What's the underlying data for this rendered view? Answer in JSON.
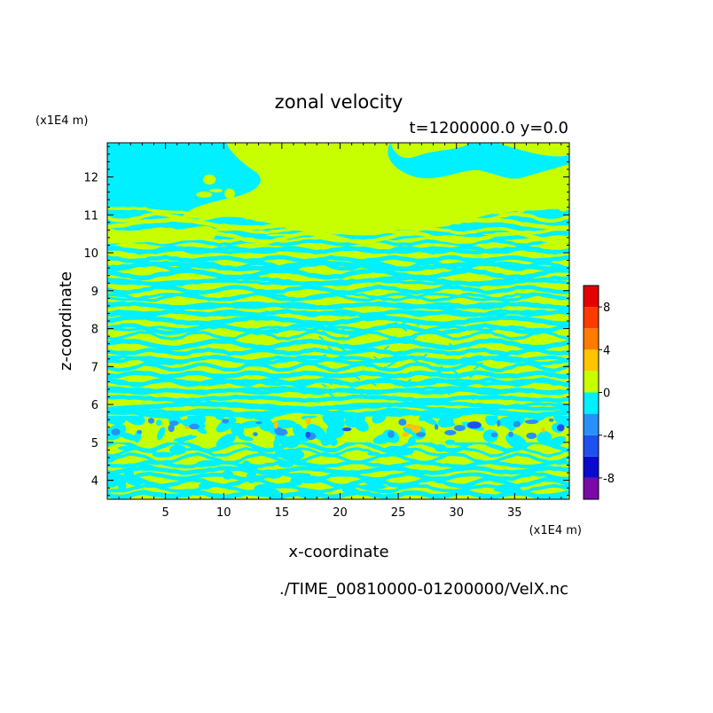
{
  "chart_data": {
    "type": "heatmap",
    "title": "zonal velocity",
    "subtitle": "t=1200000.0 y=0.0",
    "xlabel": "x-coordinate",
    "ylabel": "z-coordinate",
    "x_unit": "(x1E4 m)",
    "y_unit": "(x1E4 m)",
    "footer": "./TIME_00810000-01200000/VelX.nc",
    "xlim": [
      0,
      39.7
    ],
    "ylim": [
      3.5,
      12.9
    ],
    "x_ticks": [
      5,
      10,
      15,
      20,
      25,
      30,
      35
    ],
    "y_ticks": [
      4,
      5,
      6,
      7,
      8,
      9,
      10,
      11,
      12
    ],
    "colorbar": {
      "levels": [
        -10,
        -8,
        -6,
        -4,
        -2,
        0,
        2,
        4,
        6,
        8,
        10
      ],
      "tick_labels": [
        "8",
        "4",
        "0",
        "-4",
        "-8"
      ],
      "tick_values": [
        8,
        4,
        0,
        -4,
        -8
      ],
      "colors": [
        "#7a0aa8",
        "#0a0acf",
        "#1e50f0",
        "#2891f7",
        "#00f0ff",
        "#c8ff00",
        "#ffc400",
        "#ff7a00",
        "#ff3a00",
        "#e60000",
        "#ffaaaa"
      ]
    },
    "pattern": {
      "background": "#00f0ff",
      "stripe": "#c8ff00",
      "regions": [
        {
          "name": "upper",
          "z_from": 10.5,
          "z_to": 12.9,
          "dominant": "#00f0ff",
          "secondary": "#c8ff00"
        },
        {
          "name": "banded",
          "z_from": 5.7,
          "z_to": 10.5,
          "dominant": "#c8ff00",
          "secondary": "#00f0ff"
        },
        {
          "name": "turbulent",
          "z_from": 5.0,
          "z_to": 5.7,
          "dominant": "#c8ff00",
          "secondary": "#00f0ff"
        },
        {
          "name": "lower",
          "z_from": 3.5,
          "z_to": 5.0,
          "dominant": "#c8ff00",
          "secondary": "#00f0ff"
        }
      ]
    }
  }
}
